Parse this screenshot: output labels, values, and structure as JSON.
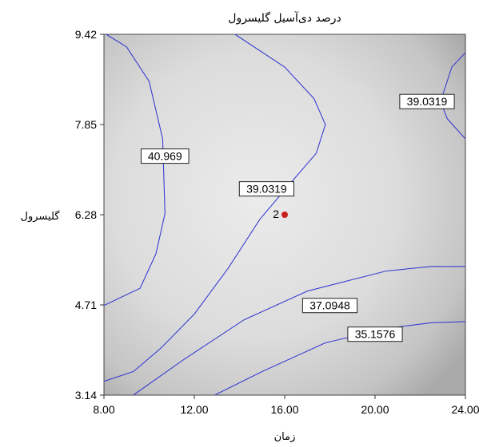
{
  "chart_data": {
    "type": "contour",
    "title": "درصد دی‌آسیل گلیسرول",
    "xlabel": "زمان",
    "ylabel": "گلیسرول",
    "xlim": [
      8.0,
      24.0
    ],
    "ylim": [
      3.14,
      9.42
    ],
    "x_ticks": [
      "8.00",
      "12.00",
      "16.00",
      "20.00",
      "24.00"
    ],
    "y_ticks": [
      "3.14",
      "4.71",
      "6.28",
      "7.85",
      "9.42"
    ],
    "colors": {
      "contour": "#3a3fd0",
      "point": "#c8201e",
      "background_light": "#e6e6e6",
      "background_dark": "#a8a8a8"
    },
    "contours": [
      {
        "level": "40.969",
        "label_at": [
          10.7,
          7.3
        ],
        "points": [
          [
            8.1,
            9.42
          ],
          [
            9.0,
            9.2
          ],
          [
            10.0,
            8.6
          ],
          [
            10.6,
            7.6
          ],
          [
            10.7,
            6.3
          ],
          [
            10.3,
            5.6
          ],
          [
            9.6,
            5.0
          ],
          [
            8.0,
            4.7
          ]
        ]
      },
      {
        "level": "39.0319",
        "label_at": [
          15.2,
          6.73
        ],
        "points": [
          [
            13.8,
            9.42
          ],
          [
            16.0,
            8.85
          ],
          [
            17.3,
            8.3
          ],
          [
            17.8,
            7.85
          ],
          [
            17.4,
            7.35
          ],
          [
            16.3,
            6.85
          ],
          [
            14.9,
            6.2
          ],
          [
            13.5,
            5.35
          ],
          [
            12.0,
            4.55
          ],
          [
            10.5,
            3.95
          ],
          [
            9.3,
            3.55
          ],
          [
            8.0,
            3.38
          ]
        ]
      },
      {
        "level": "39.0319",
        "label_at": [
          22.3,
          8.25
        ],
        "points": [
          [
            24.0,
            9.1
          ],
          [
            23.4,
            8.85
          ],
          [
            22.9,
            8.25
          ],
          [
            23.2,
            7.95
          ],
          [
            24.0,
            7.6
          ]
        ]
      },
      {
        "level": "37.0948",
        "label_at": [
          18.0,
          4.7
        ],
        "points": [
          [
            9.3,
            3.14
          ],
          [
            11.5,
            3.75
          ],
          [
            14.2,
            4.45
          ],
          [
            17.0,
            4.95
          ],
          [
            20.5,
            5.3
          ],
          [
            22.5,
            5.38
          ],
          [
            24.0,
            5.38
          ]
        ]
      },
      {
        "level": "35.1576",
        "label_at": [
          20.0,
          4.2
        ],
        "points": [
          [
            12.9,
            3.14
          ],
          [
            15.0,
            3.55
          ],
          [
            17.8,
            4.05
          ],
          [
            20.5,
            4.3
          ],
          [
            22.5,
            4.4
          ],
          [
            24.0,
            4.42
          ]
        ]
      }
    ],
    "design_point": {
      "x": 16.0,
      "y": 6.28,
      "label": "2"
    }
  }
}
